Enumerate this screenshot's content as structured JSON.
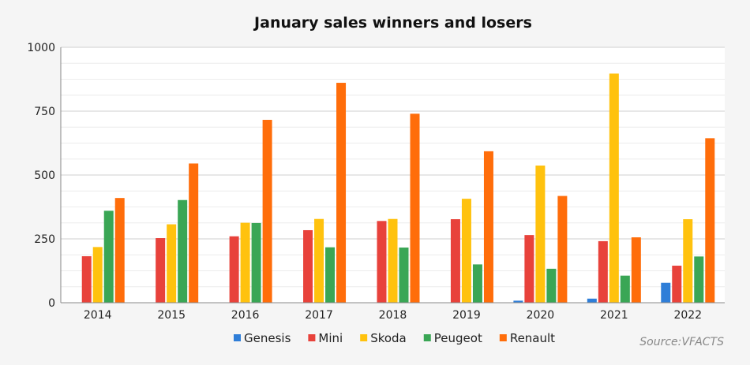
{
  "chart_data": {
    "type": "bar",
    "title": "January sales winners and losers",
    "source": "Source:VFACTS",
    "categories": [
      "2014",
      "2015",
      "2016",
      "2017",
      "2018",
      "2019",
      "2020",
      "2021",
      "2022"
    ],
    "ylim": [
      0,
      1000
    ],
    "yticks": [
      0,
      250,
      500,
      750,
      1000
    ],
    "grid": true,
    "legend_position": "bottom",
    "series": [
      {
        "name": "Genesis",
        "color": "#2f7ed8",
        "values": [
          0,
          0,
          0,
          0,
          0,
          0,
          8,
          16,
          78
        ]
      },
      {
        "name": "Mini",
        "color": "#e8423b",
        "values": [
          182,
          253,
          260,
          284,
          320,
          327,
          265,
          241,
          145
        ]
      },
      {
        "name": "Skoda",
        "color": "#ffc20e",
        "values": [
          218,
          307,
          313,
          328,
          328,
          407,
          537,
          897,
          327
        ]
      },
      {
        "name": "Peugeot",
        "color": "#3aa655",
        "values": [
          360,
          402,
          312,
          217,
          216,
          150,
          133,
          106,
          181
        ]
      },
      {
        "name": "Renault",
        "color": "#ff6d0a",
        "values": [
          410,
          545,
          716,
          861,
          740,
          593,
          418,
          256,
          644
        ]
      }
    ]
  }
}
